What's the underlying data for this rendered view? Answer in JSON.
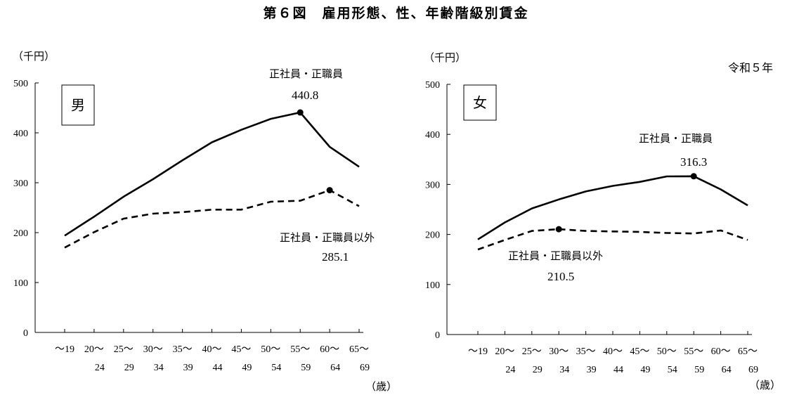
{
  "title": "第６図　雇用形態、性、年齢階級別賃金",
  "period": "令和５年",
  "chart_data": [
    {
      "type": "line",
      "panel_label": "男",
      "y_unit": "（千円）",
      "x_unit": "（歳）",
      "ylim": [
        0,
        500
      ],
      "yticks": [
        "0",
        "100",
        "200",
        "300",
        "400",
        "500"
      ],
      "categories": [
        [
          "～19",
          ""
        ],
        [
          "20～",
          "24"
        ],
        [
          "25～",
          "29"
        ],
        [
          "30～",
          "34"
        ],
        [
          "35～",
          "39"
        ],
        [
          "40～",
          "44"
        ],
        [
          "45～",
          "49"
        ],
        [
          "50～",
          "54"
        ],
        [
          "55～",
          "59"
        ],
        [
          "60～",
          "64"
        ],
        [
          "65～",
          "69"
        ]
      ],
      "series": [
        {
          "name": "正社員・正職員",
          "style": "solid",
          "values": [
            194,
            232,
            272,
            307,
            345,
            381,
            406,
            428,
            440.8,
            372,
            332
          ],
          "peak_index": 8,
          "peak_label": "440.8"
        },
        {
          "name": "正社員・正職員以外",
          "style": "dashed",
          "values": [
            170,
            201,
            228,
            238,
            241,
            246,
            246,
            262,
            264,
            285.1,
            253
          ],
          "peak_index": 9,
          "peak_label": "285.1"
        }
      ]
    },
    {
      "type": "line",
      "panel_label": "女",
      "y_unit": "（千円）",
      "x_unit": "（歳）",
      "ylim": [
        0,
        500
      ],
      "yticks": [
        "0",
        "100",
        "200",
        "300",
        "400",
        "500"
      ],
      "categories": [
        [
          "～19",
          ""
        ],
        [
          "20～",
          "24"
        ],
        [
          "25～",
          "29"
        ],
        [
          "30～",
          "34"
        ],
        [
          "35～",
          "39"
        ],
        [
          "40～",
          "44"
        ],
        [
          "45～",
          "49"
        ],
        [
          "50～",
          "54"
        ],
        [
          "55～",
          "59"
        ],
        [
          "60～",
          "64"
        ],
        [
          "65～",
          "69"
        ]
      ],
      "series": [
        {
          "name": "正社員・正職員",
          "style": "solid",
          "values": [
            190,
            224,
            252,
            270,
            286,
            297,
            305,
            316,
            316.3,
            290,
            258
          ],
          "peak_index": 8,
          "peak_label": "316.3"
        },
        {
          "name": "正社員・正職員以外",
          "style": "dashed",
          "values": [
            170,
            189,
            207,
            210.5,
            207,
            206,
            205,
            203,
            202,
            208,
            189
          ],
          "peak_index": 3,
          "peak_label": "210.5"
        }
      ]
    }
  ]
}
